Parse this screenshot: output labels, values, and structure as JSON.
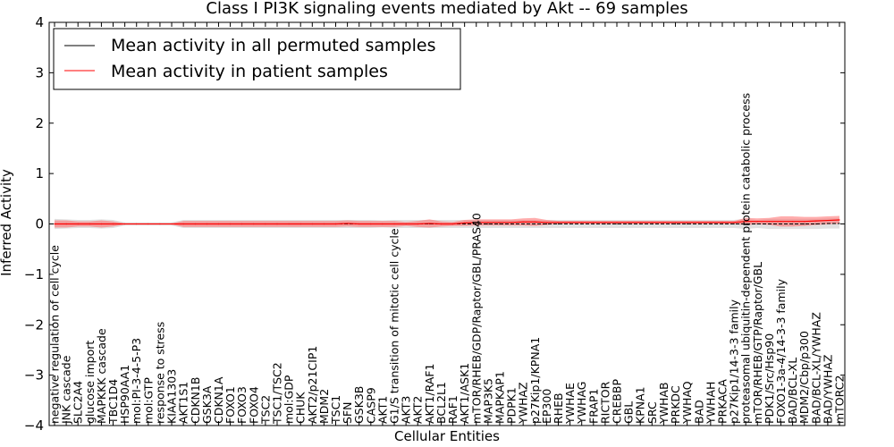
{
  "chart_data": {
    "type": "line",
    "title": "Class I PI3K signaling events mediated by Akt -- 69 samples",
    "xlabel": "Cellular Entities",
    "ylabel": "Inferred Activity",
    "ylim": [
      -4,
      4
    ],
    "yticks": [
      -4,
      -3,
      -2,
      -1,
      0,
      1,
      2,
      3,
      4
    ],
    "yticklabels": [
      "−4",
      "−3",
      "−2",
      "−1",
      "0",
      "1",
      "2",
      "3",
      "4"
    ],
    "legend_position": "top-left",
    "categories": [
      "negative regulation of cell cycle",
      "JNK cascade",
      "SLC2A4",
      "glucose import",
      "MAPKKK cascade",
      "TBC1D4",
      "HSP90AA1",
      "mol:PI-3-4-5-P3",
      "mol:GTP",
      "response to stress",
      "KIAA1303",
      "AKT1S1",
      "CDKN1B",
      "GSK3A",
      "CDKN1A",
      "FOXO1",
      "FOXO3",
      "FOXO4",
      "TSC2",
      "TSC1/TSC2",
      "mol:GDP",
      "CHUK",
      "AKT2/p21CIP1",
      "MDM2",
      "TSC1",
      "SFN",
      "GSK3B",
      "CASP9",
      "AKT1",
      "G1/S transition of mitotic cell cycle",
      "AKT3",
      "AKT2",
      "AKT1/RAF1",
      "BCL2L1",
      "RAF1",
      "AKT1/ASK1",
      "mTOR/RHEB/GDP/Raptor/GBL/PRAS40",
      "MAP3K5",
      "MAPKAP1",
      "PDPK1",
      "YWHAZ",
      "p27Kip1/KPNA1",
      "EP300",
      "RHEB",
      "YWHAE",
      "YWHAG",
      "FRAP1",
      "RICTOR",
      "CREBBP",
      "GBL",
      "KPNA1",
      "SRC",
      "YWHAB",
      "PRKDC",
      "YWHAQ",
      "BAD",
      "YWHAH",
      "PRKACA",
      "p27Kip1/14-3-3 family",
      "proteasomal ubiquitin-dependent protein catabolic process",
      "mTOR/RHEB/GTP/Raptor/GBL",
      "PDK1/Src/Hsp90",
      "FOXO1-3a-4/14-3-3 family",
      "BAD/BCL-XL",
      "MDM2/Cbp/p300",
      "BAD/BCL-XL/YWHAZ",
      "BAD/YWHAZ",
      "mTORC2"
    ],
    "series": [
      {
        "name": "Mean activity in all permuted samples",
        "color": "#000000",
        "values": [
          0.0,
          0.0,
          0.0,
          0.0,
          0.0,
          0.0,
          0.0,
          0.0,
          0.0,
          0.0,
          0.0,
          0.0,
          0.0,
          0.0,
          0.0,
          0.0,
          0.0,
          0.0,
          0.0,
          0.0,
          0.0,
          0.0,
          0.0,
          0.0,
          0.0,
          0.0,
          0.0,
          0.0,
          0.0,
          0.0,
          0.0,
          0.0,
          0.0,
          0.0,
          0.0,
          0.0,
          0.0,
          0.0,
          0.0,
          0.0,
          0.0,
          0.0,
          0.0,
          0.0,
          0.0,
          0.0,
          0.0,
          0.0,
          0.0,
          0.0,
          0.0,
          0.0,
          0.0,
          0.0,
          0.0,
          0.0,
          0.0,
          0.0,
          0.0,
          0.0,
          0.0,
          0.0,
          0.0,
          0.0,
          0.0,
          0.0,
          0.01,
          0.01
        ],
        "band": [
          0.1,
          0.09,
          0.08,
          0.08,
          0.09,
          0.08,
          0.03,
          0.03,
          0.03,
          0.03,
          0.03,
          0.08,
          0.08,
          0.08,
          0.08,
          0.08,
          0.08,
          0.08,
          0.08,
          0.08,
          0.08,
          0.08,
          0.08,
          0.08,
          0.08,
          0.08,
          0.08,
          0.08,
          0.07,
          0.08,
          0.08,
          0.08,
          0.08,
          0.08,
          0.08,
          0.08,
          0.08,
          0.08,
          0.08,
          0.08,
          0.08,
          0.08,
          0.08,
          0.08,
          0.08,
          0.08,
          0.08,
          0.08,
          0.08,
          0.08,
          0.08,
          0.08,
          0.08,
          0.08,
          0.08,
          0.08,
          0.08,
          0.08,
          0.08,
          0.1,
          0.08,
          0.1,
          0.1,
          0.1,
          0.1,
          0.1,
          0.1,
          0.1
        ]
      },
      {
        "name": "Mean activity in patient samples",
        "color": "#ff0000",
        "values": [
          0.0,
          0.0,
          0.0,
          0.0,
          0.0,
          0.0,
          0.0,
          0.0,
          0.0,
          0.0,
          0.0,
          0.0,
          0.0,
          0.0,
          0.0,
          0.0,
          0.0,
          0.0,
          0.0,
          0.0,
          0.0,
          0.0,
          0.0,
          0.0,
          0.0,
          0.01,
          0.0,
          0.0,
          0.0,
          0.0,
          0.0,
          0.0,
          0.01,
          0.0,
          0.0,
          0.02,
          0.03,
          0.03,
          0.03,
          0.03,
          0.04,
          0.04,
          0.03,
          0.03,
          0.03,
          0.03,
          0.03,
          0.03,
          0.03,
          0.03,
          0.03,
          0.03,
          0.03,
          0.03,
          0.03,
          0.03,
          0.03,
          0.03,
          0.03,
          0.05,
          0.05,
          0.05,
          0.05,
          0.05,
          0.05,
          0.06,
          0.07,
          0.08
        ],
        "band": [
          0.07,
          0.07,
          0.05,
          0.05,
          0.07,
          0.05,
          0.01,
          0.01,
          0.01,
          0.01,
          0.01,
          0.06,
          0.06,
          0.06,
          0.06,
          0.06,
          0.06,
          0.06,
          0.06,
          0.06,
          0.06,
          0.06,
          0.06,
          0.06,
          0.06,
          0.06,
          0.06,
          0.06,
          0.06,
          0.06,
          0.04,
          0.06,
          0.08,
          0.05,
          0.04,
          0.06,
          0.06,
          0.06,
          0.06,
          0.06,
          0.07,
          0.08,
          0.05,
          0.03,
          0.03,
          0.03,
          0.03,
          0.03,
          0.03,
          0.03,
          0.03,
          0.03,
          0.03,
          0.03,
          0.03,
          0.03,
          0.03,
          0.03,
          0.03,
          0.07,
          0.06,
          0.07,
          0.1,
          0.1,
          0.09,
          0.08,
          0.08,
          0.08
        ]
      }
    ]
  }
}
